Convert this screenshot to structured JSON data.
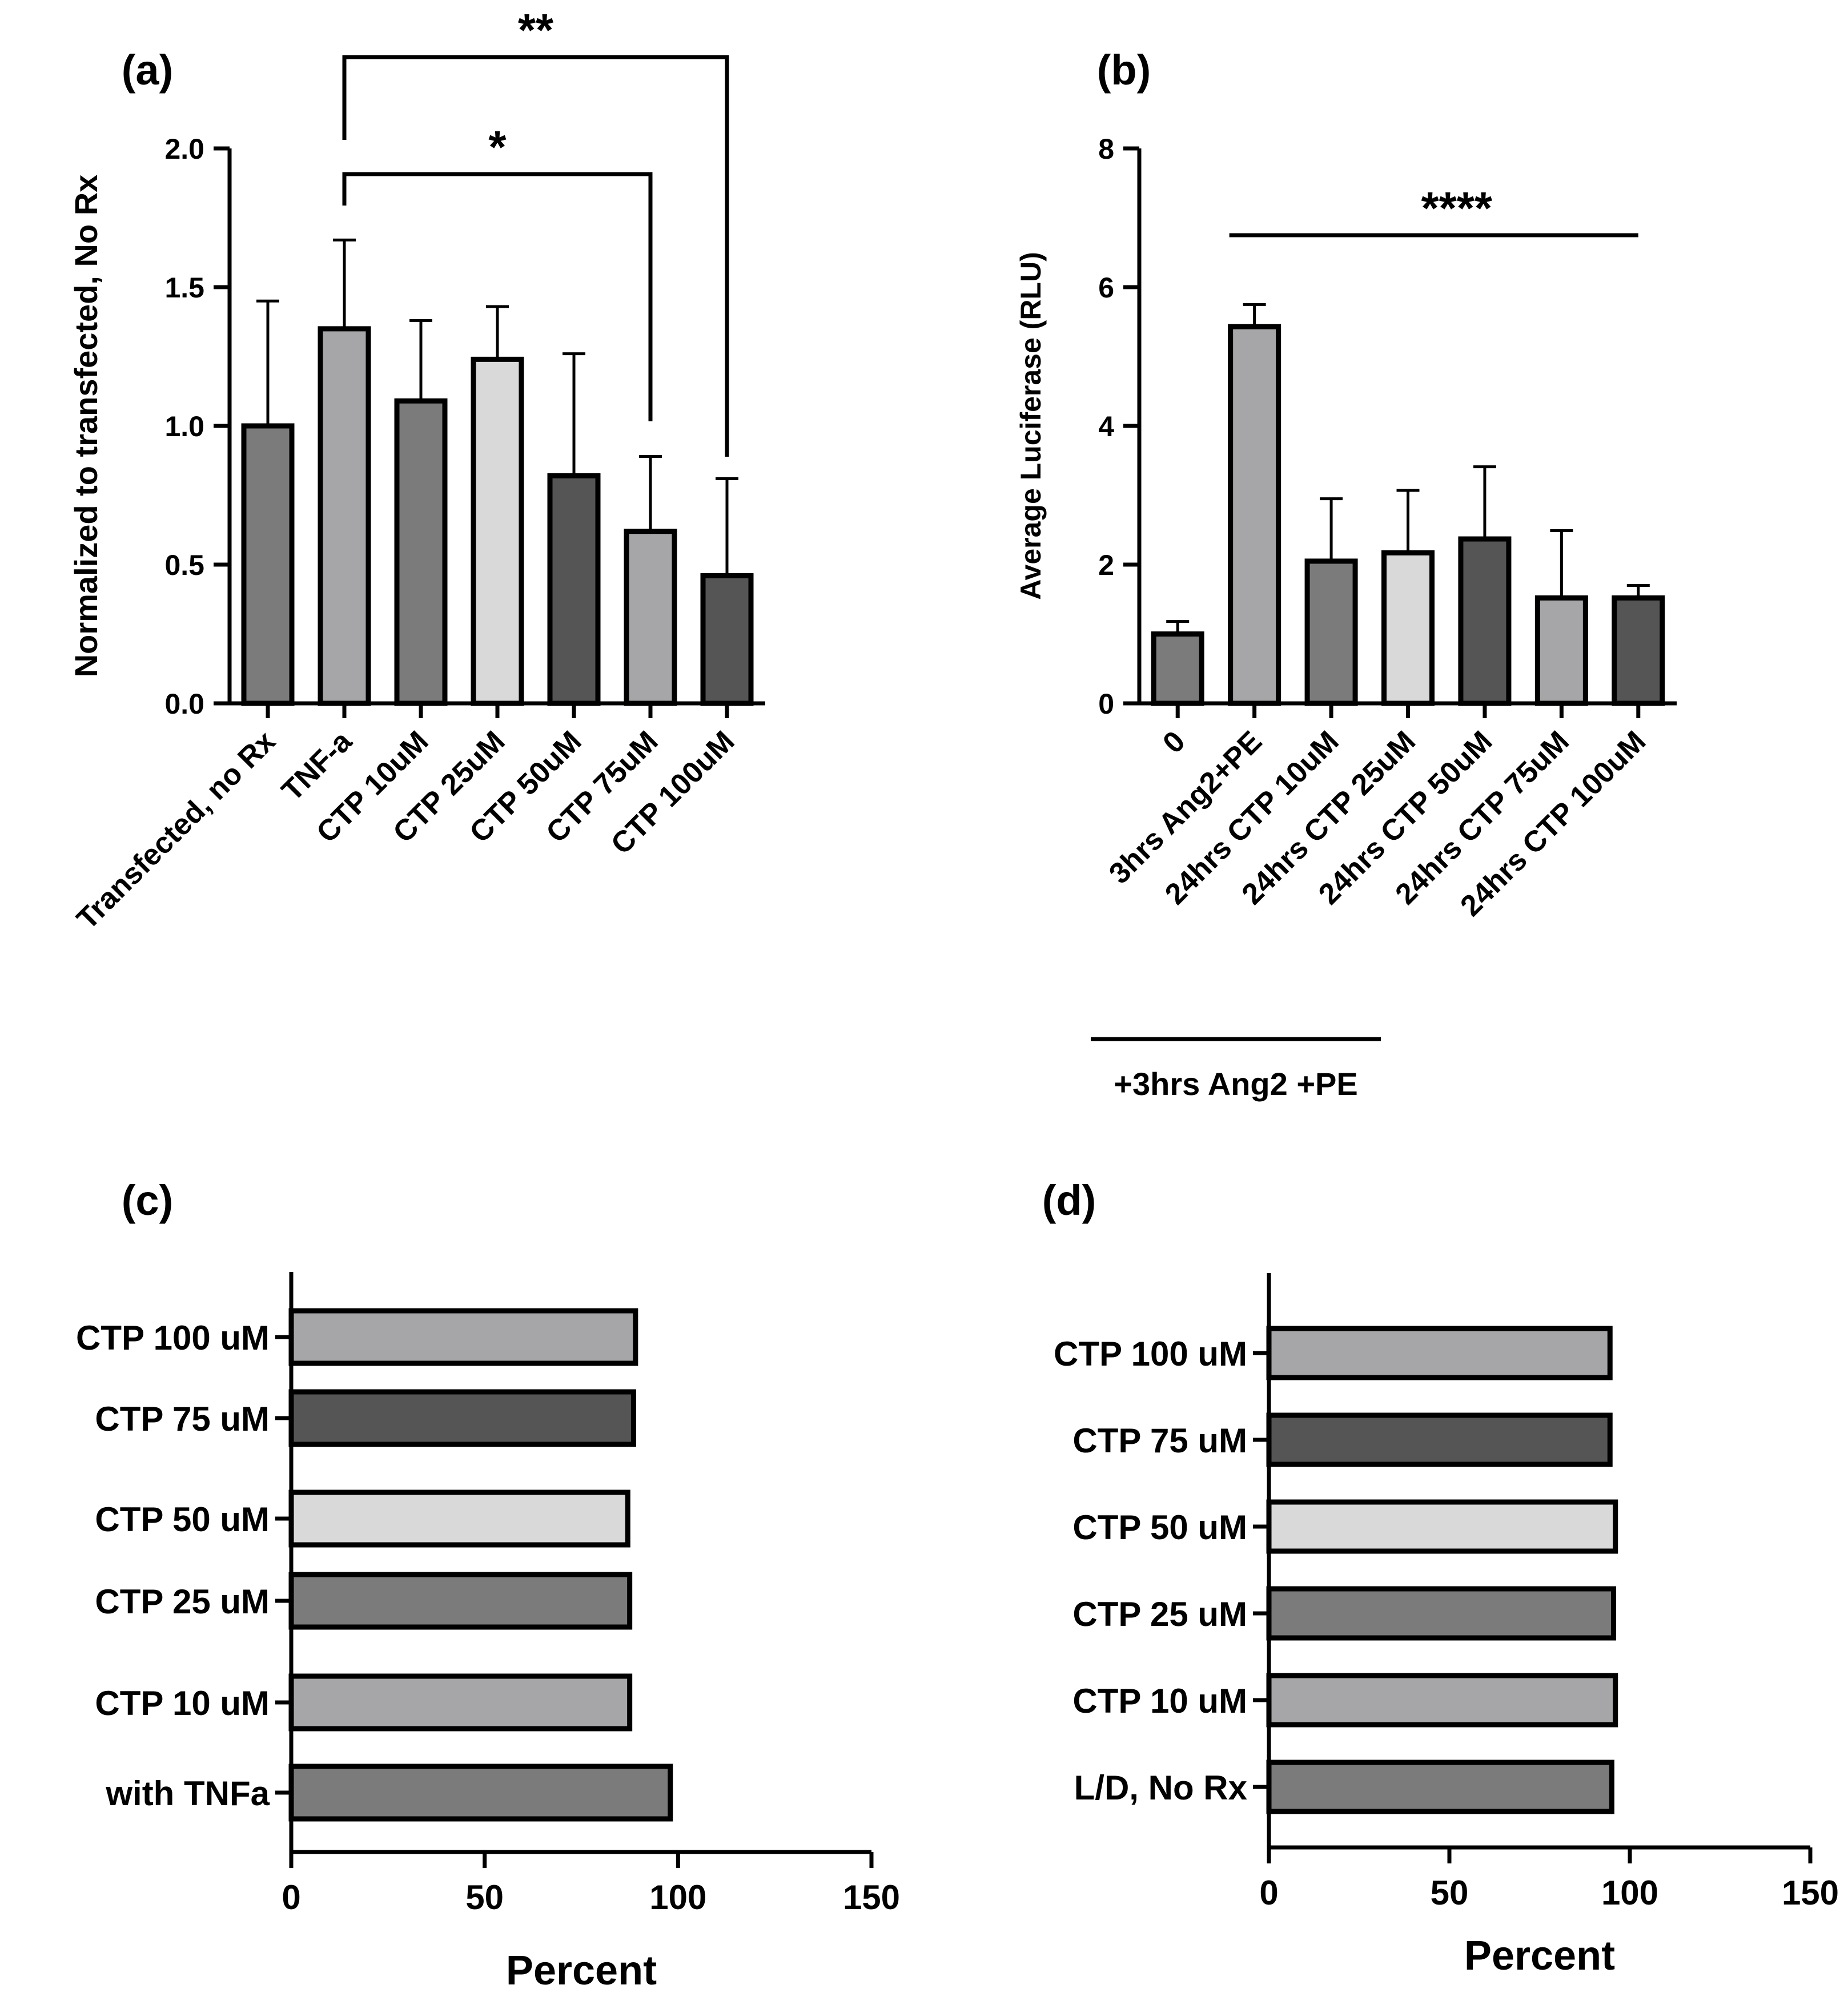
{
  "colors": {
    "dark": "#555555",
    "medium": "#7b7b7b",
    "light": "#a6a6a8",
    "lightest": "#d9d9d9",
    "stroke": "#000000"
  },
  "chart_data": [
    {
      "id": "a",
      "panel_label": "(a)",
      "type": "bar",
      "orientation": "vertical",
      "ylabel": "Normalized to transfected, No Rx",
      "ylim": [
        0,
        2.0
      ],
      "yticks": [
        "0.0",
        "0.5",
        "1.0",
        "1.5",
        "2.0"
      ],
      "categories": [
        "Transfected, no Rx",
        "TNF-a",
        "CTP 10uM",
        "CTP 25uM",
        "CTP 50uM",
        "CTP 75uM",
        "CTP 100uM"
      ],
      "values": [
        1.0,
        1.35,
        1.09,
        1.24,
        0.82,
        0.62,
        0.46
      ],
      "errors": [
        0.45,
        0.32,
        0.29,
        0.19,
        0.44,
        0.27,
        0.35
      ],
      "bar_colors": [
        "medium",
        "light",
        "medium",
        "lightest",
        "dark",
        "light",
        "dark"
      ],
      "significance": [
        {
          "from": 1,
          "to": 6,
          "label": "**"
        },
        {
          "from": 1,
          "to": 5,
          "label": "*"
        }
      ]
    },
    {
      "id": "b",
      "panel_label": "(b)",
      "type": "bar",
      "orientation": "vertical",
      "ylabel": "Average Luciferase (RLU)",
      "ylim": [
        0,
        8
      ],
      "yticks": [
        "0",
        "2",
        "4",
        "6",
        "8"
      ],
      "categories": [
        "0",
        "3hrs Ang2+PE",
        "24hrs CTP 10uM",
        "24hrs CTP 25uM",
        "24hrs CTP 50uM",
        "24hrs CTP 75uM",
        "24hrs CTP 100uM"
      ],
      "values": [
        1.0,
        5.43,
        2.05,
        2.17,
        2.37,
        1.52,
        1.52
      ],
      "errors": [
        0.18,
        0.32,
        0.9,
        0.9,
        1.04,
        0.97,
        0.18
      ],
      "bar_colors": [
        "medium",
        "light",
        "medium",
        "lightest",
        "dark",
        "light",
        "dark"
      ],
      "significance_line": {
        "from": 1,
        "to": 6,
        "label": "****"
      },
      "group_label": "+3hrs Ang2 +PE"
    },
    {
      "id": "c",
      "panel_label": "(c)",
      "type": "bar",
      "orientation": "horizontal",
      "xlabel": "Percent",
      "xlim": [
        0,
        150
      ],
      "xticks": [
        "0",
        "50",
        "100",
        "150"
      ],
      "categories": [
        "CTP 100 uM",
        "CTP 75 uM",
        "CTP 50 uM",
        "CTP 25 uM",
        "CTP 10 uM",
        "with TNFa"
      ],
      "values": [
        89,
        88.5,
        87,
        87.5,
        87.5,
        98
      ],
      "bar_colors": [
        "light",
        "dark",
        "lightest",
        "medium",
        "light",
        "medium"
      ]
    },
    {
      "id": "d",
      "panel_label": "(d)",
      "type": "bar",
      "orientation": "horizontal",
      "xlabel": "Percent",
      "xlim": [
        0,
        150
      ],
      "xticks": [
        "0",
        "50",
        "100",
        "150"
      ],
      "categories": [
        "CTP 100 uM",
        "CTP 75 uM",
        "CTP 50 uM",
        "CTP 25 uM",
        "CTP 10 uM",
        "L/D, No Rx"
      ],
      "values": [
        94.5,
        94.5,
        96,
        95.5,
        96,
        95
      ],
      "bar_colors": [
        "light",
        "dark",
        "lightest",
        "medium",
        "light",
        "medium"
      ]
    }
  ]
}
